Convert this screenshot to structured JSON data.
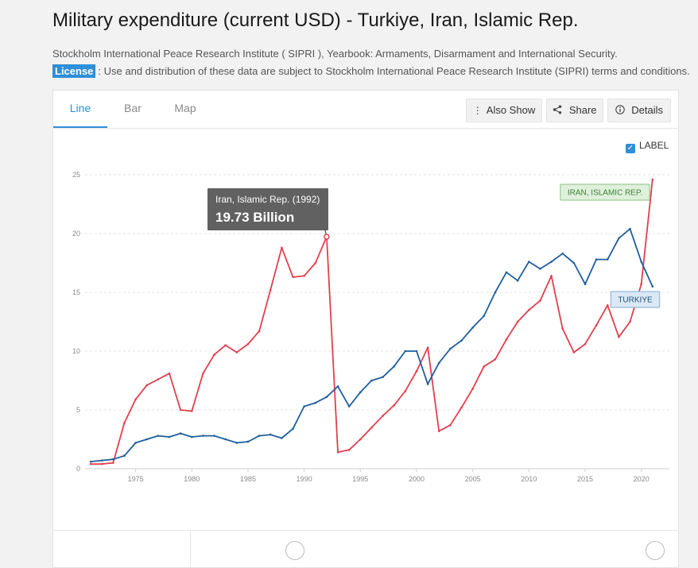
{
  "page": {
    "title": "Military expenditure (current USD) - Turkiye, Iran, Islamic Rep.",
    "source": "Stockholm International Peace Research Institute ( SIPRI ), Yearbook: Armaments, Disarmament and International Security.",
    "license_badge": "License",
    "license_text": ": Use and distribution of these data are subject to Stockholm International Peace Research Institute (SIPRI) terms and conditions."
  },
  "tabs": [
    {
      "label": "Line",
      "active": true
    },
    {
      "label": "Bar",
      "active": false
    },
    {
      "label": "Map",
      "active": false
    }
  ],
  "toolbar": {
    "also_show": "Also Show",
    "share": "Share",
    "details": "Details",
    "also_show_icon": "vertical-dots-icon",
    "share_icon": "share-icon",
    "details_icon": "info-icon"
  },
  "label_toggle": {
    "label": "LABEL",
    "checked": true
  },
  "tooltip": {
    "series_name": "Iran, Islamic Rep. (1992)",
    "value": "19.73 Billion",
    "year": 1992
  },
  "chart_data": {
    "type": "line",
    "x_ticks": [
      1975,
      1980,
      1985,
      1990,
      1995,
      2000,
      2005,
      2010,
      2015,
      2020
    ],
    "y_ticks": [
      "0",
      "5",
      "10",
      "15",
      "20",
      "25"
    ],
    "xlim": [
      1970.5,
      2022.5
    ],
    "ylim": [
      0,
      25
    ],
    "grid": true,
    "series": [
      {
        "name": "IRAN, ISLAMIC REP.",
        "color": "#e0404e",
        "label_fill": "#dff0db",
        "label_stroke": "#8cc183",
        "label_text_color": "#3e7f3a",
        "x": [
          1971,
          1972,
          1973,
          1974,
          1975,
          1976,
          1977,
          1978,
          1979,
          1980,
          1981,
          1982,
          1983,
          1984,
          1985,
          1986,
          1987,
          1988,
          1989,
          1990,
          1991,
          1992,
          1993,
          1994,
          1995,
          1996,
          1997,
          1998,
          1999,
          2000,
          2001,
          2002,
          2003,
          2004,
          2005,
          2006,
          2007,
          2008,
          2009,
          2010,
          2011,
          2012,
          2013,
          2014,
          2015,
          2016,
          2017,
          2018,
          2019,
          2020,
          2021
        ],
        "y": [
          0.4,
          0.4,
          0.5,
          3.9,
          5.9,
          7.1,
          7.6,
          8.1,
          5.0,
          4.9,
          8.1,
          9.7,
          10.5,
          9.9,
          10.6,
          11.7,
          15.2,
          18.8,
          16.3,
          16.4,
          17.5,
          19.73,
          1.4,
          1.6,
          2.5,
          3.5,
          4.5,
          5.4,
          6.6,
          8.3,
          10.3,
          3.2,
          3.7,
          5.2,
          6.8,
          8.7,
          9.3,
          11.0,
          12.5,
          13.5,
          14.3,
          16.4,
          11.9,
          9.9,
          10.6,
          12.2,
          13.9,
          11.2,
          12.5,
          15.7,
          24.6
        ]
      },
      {
        "name": "TURKIYE",
        "color": "#1f5e9c",
        "label_fill": "#dbe9f4",
        "label_stroke": "#7faed5",
        "label_text_color": "#1f4f7f",
        "x": [
          1971,
          1972,
          1973,
          1974,
          1975,
          1976,
          1977,
          1978,
          1979,
          1980,
          1981,
          1982,
          1983,
          1984,
          1985,
          1986,
          1987,
          1988,
          1989,
          1990,
          1991,
          1992,
          1993,
          1994,
          1995,
          1996,
          1997,
          1998,
          1999,
          2000,
          2001,
          2002,
          2003,
          2004,
          2005,
          2006,
          2007,
          2008,
          2009,
          2010,
          2011,
          2012,
          2013,
          2014,
          2015,
          2016,
          2017,
          2018,
          2019,
          2020,
          2021
        ],
        "y": [
          0.6,
          0.7,
          0.8,
          1.1,
          2.2,
          2.5,
          2.8,
          2.7,
          3.0,
          2.7,
          2.8,
          2.8,
          2.5,
          2.2,
          2.3,
          2.8,
          2.9,
          2.6,
          3.4,
          5.3,
          5.6,
          6.1,
          7.0,
          5.3,
          6.5,
          7.5,
          7.8,
          8.7,
          10.0,
          10.0,
          7.2,
          9.0,
          10.2,
          10.9,
          12.0,
          13.0,
          15.0,
          16.7,
          16.0,
          17.6,
          17.0,
          17.6,
          18.3,
          17.5,
          15.7,
          17.8,
          17.8,
          19.6,
          20.4,
          17.6,
          15.5
        ]
      }
    ]
  }
}
